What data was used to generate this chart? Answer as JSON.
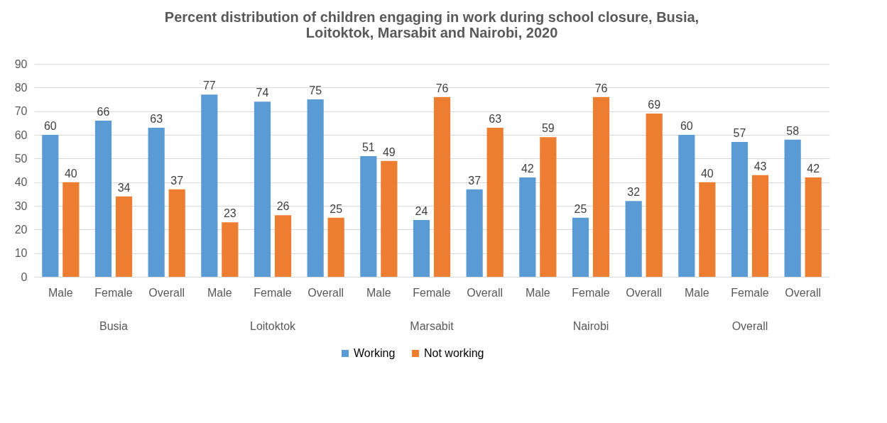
{
  "chart_data": {
    "type": "bar",
    "title": "Percent distribution of children engaging in work during school closure, Busia, Loitoktok, Marsabit and Nairobi, 2020",
    "categories": [
      "Male",
      "Female",
      "Overall",
      "Male",
      "Female",
      "Overall",
      "Male",
      "Female",
      "Overall",
      "Male",
      "Female",
      "Overall",
      "Male",
      "Female",
      "Overall"
    ],
    "series": [
      {
        "name": "Working",
        "color": "#5b9bd5",
        "values": [
          60,
          66,
          63,
          77,
          74,
          75,
          51,
          24,
          37,
          42,
          25,
          32,
          60,
          57,
          58
        ]
      },
      {
        "name": "Not working",
        "color": "#ed7d31",
        "values": [
          40,
          34,
          37,
          23,
          26,
          25,
          49,
          76,
          63,
          59,
          76,
          69,
          40,
          43,
          42
        ]
      }
    ],
    "annotations": [
      "Busia",
      "Loitoktok",
      "Marsabit",
      "Nairobi",
      "Overall"
    ],
    "ylim": [
      0,
      90
    ],
    "yticks": [
      0,
      10,
      20,
      30,
      40,
      50,
      60,
      70,
      80,
      90
    ],
    "grid": "y",
    "legend": "bottom",
    "data_labels": true
  }
}
